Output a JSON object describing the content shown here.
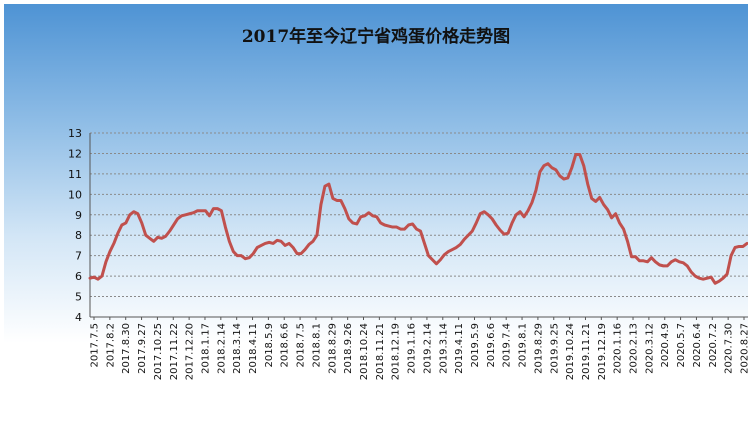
{
  "chart_data": {
    "type": "line",
    "title": "2017年至今辽宁省鸡蛋价格走势图",
    "ylim": [
      4,
      13
    ],
    "yticks": [
      4,
      5,
      6,
      7,
      8,
      9,
      10,
      11,
      12,
      13
    ],
    "grid": true,
    "line_color": "#c0504d",
    "x_tick_labels": [
      "2017.7.5",
      "2017.8.2",
      "2017.8.30",
      "2017.9.27",
      "2017.10.25",
      "2017.11.22",
      "2017.12.20",
      "2018.1.17",
      "2018.2.14",
      "2018.3.14",
      "2018.4.11",
      "2018.5.9",
      "2018.6.6",
      "2018.7.5",
      "2018.8.1",
      "2018.8.29",
      "2018.9.26",
      "2018.10.24",
      "2018.11.21",
      "2018.12.19",
      "2019.1.16",
      "2019.2.14",
      "2019.3.14",
      "2019.4.11",
      "2019.5.9",
      "2019.6.6",
      "2019.7.4",
      "2019.8.1",
      "2019.8.29",
      "2019.9.25",
      "2019.10.24",
      "2019.11.21",
      "2019.12.19",
      "2020.1.16",
      "2020.2.13",
      "2020.3.12",
      "2020.4.9",
      "2020.5.7",
      "2020.6.4",
      "2020.7.2",
      "2020.7.30",
      "2020.8.27"
    ],
    "series": [
      {
        "values": [
          5.9,
          5.95,
          5.85,
          6.0,
          6.7,
          7.2,
          7.6,
          8.1,
          8.5,
          8.6,
          9.0,
          9.15,
          9.05,
          8.6,
          8.0,
          7.85,
          7.7,
          7.9,
          7.85,
          7.95,
          8.2,
          8.5,
          8.8,
          8.95,
          9.0,
          9.05,
          9.1,
          9.2,
          9.2,
          9.2,
          8.95,
          9.3,
          9.3,
          9.2,
          8.4,
          7.7,
          7.2,
          7.0,
          7.0,
          6.85,
          6.9,
          7.1,
          7.4,
          7.5,
          7.6,
          7.65,
          7.6,
          7.75,
          7.7,
          7.5,
          7.6,
          7.4,
          7.1,
          7.1,
          7.3,
          7.55,
          7.7,
          8.0,
          9.5,
          10.4,
          10.5,
          9.8,
          9.7,
          9.7,
          9.3,
          8.8,
          8.6,
          8.55,
          8.9,
          8.95,
          9.1,
          8.95,
          8.9,
          8.6,
          8.5,
          8.45,
          8.4,
          8.4,
          8.3,
          8.3,
          8.5,
          8.55,
          8.3,
          8.2,
          7.6,
          7.0,
          6.8,
          6.6,
          6.8,
          7.05,
          7.2,
          7.3,
          7.4,
          7.55,
          7.8,
          8.0,
          8.2,
          8.6,
          9.05,
          9.15,
          9.0,
          8.8,
          8.5,
          8.25,
          8.05,
          8.1,
          8.6,
          9.0,
          9.15,
          8.9,
          9.2,
          9.6,
          10.2,
          11.1,
          11.4,
          11.5,
          11.3,
          11.2,
          10.9,
          10.75,
          10.8,
          11.3,
          11.95,
          11.95,
          11.4,
          10.5,
          9.8,
          9.65,
          9.85,
          9.5,
          9.25,
          8.85,
          9.05,
          8.6,
          8.3,
          7.7,
          6.95,
          6.95,
          6.75,
          6.75,
          6.7,
          6.9,
          6.7,
          6.55,
          6.5,
          6.5,
          6.7,
          6.8,
          6.7,
          6.65,
          6.5,
          6.2,
          6.0,
          5.9,
          5.85,
          5.9,
          5.95,
          5.65,
          5.75,
          5.9,
          6.1,
          7.0,
          7.4,
          7.45,
          7.45,
          7.6
        ]
      }
    ]
  }
}
